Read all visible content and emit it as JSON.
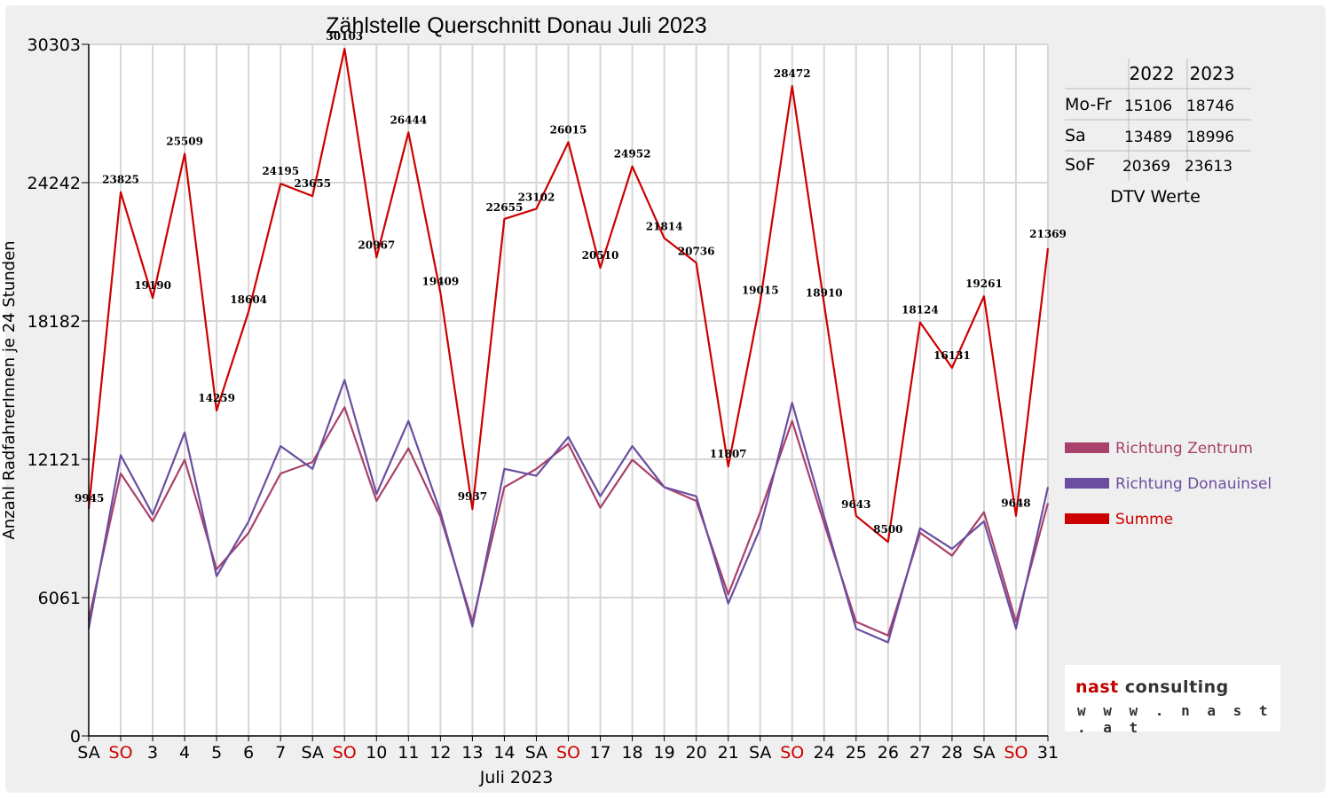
{
  "chart_data": {
    "type": "line",
    "title": "Zählstelle Querschnitt Donau Juli 2023",
    "xlabel": "Juli 2023",
    "ylabel": "Anzahl RadfahrerInnen je 24 Stunden",
    "ylim": [
      0,
      30303
    ],
    "yticks": [
      "0",
      "6061",
      "12121",
      "18182",
      "24242",
      "30303"
    ],
    "ytick_values": [
      0,
      6061,
      12121,
      18182,
      24242,
      30303
    ],
    "categories": [
      "SA",
      "SO",
      "3",
      "4",
      "5",
      "6",
      "7",
      "SA",
      "SO",
      "10",
      "11",
      "12",
      "13",
      "14",
      "SA",
      "SO",
      "17",
      "18",
      "19",
      "20",
      "21",
      "SA",
      "SO",
      "24",
      "25",
      "26",
      "27",
      "28",
      "SA",
      "SO",
      "31"
    ],
    "weekend_flags": [
      0,
      1,
      0,
      0,
      0,
      0,
      0,
      0,
      1,
      0,
      0,
      0,
      0,
      0,
      0,
      1,
      0,
      0,
      0,
      0,
      0,
      0,
      1,
      0,
      0,
      0,
      0,
      0,
      0,
      1,
      0
    ],
    "grid": true,
    "legend_position": "right",
    "series": [
      {
        "name": "Richtung Zentrum",
        "color": "#a8416b",
        "values": [
          5100,
          11500,
          9400,
          12100,
          7300,
          8900,
          11500,
          12000,
          14400,
          10300,
          12600,
          9600,
          5000,
          10900,
          11700,
          12800,
          10000,
          12100,
          10900,
          10300,
          6200,
          9800,
          13800,
          9300,
          5000,
          4400,
          8900,
          7900,
          9800,
          5000,
          10200
        ]
      },
      {
        "name": "Richtung Donauinsel",
        "color": "#6b4ea0",
        "values": [
          4700,
          12300,
          9700,
          13300,
          7000,
          9400,
          12700,
          11700,
          15600,
          10600,
          13800,
          9800,
          4800,
          11700,
          11400,
          13100,
          10500,
          12700,
          10900,
          10500,
          5800,
          9100,
          14600,
          9600,
          4700,
          4100,
          9100,
          8200,
          9400,
          4700,
          10900
        ]
      },
      {
        "name": "Summe",
        "color": "#cc0000",
        "values": [
          9945,
          23825,
          19190,
          25509,
          14259,
          18604,
          24195,
          23655,
          30103,
          20967,
          26444,
          19409,
          9937,
          22655,
          23102,
          26015,
          20510,
          24952,
          21814,
          20736,
          11807,
          19015,
          28472,
          18910,
          9643,
          8500,
          18124,
          16131,
          19261,
          9648,
          21369
        ]
      }
    ],
    "data_labels": [
      "9945",
      "23825",
      "19190",
      "25509",
      "14259",
      "18604",
      "24195",
      "23655",
      "30103",
      "20967",
      "26444",
      "19409",
      "9937",
      "22655",
      "23102",
      "26015",
      "20510",
      "24952",
      "21814",
      "20736",
      "11807",
      "19015",
      "28472",
      "18910",
      "9643",
      "8500",
      "18124",
      "16131",
      "19261",
      "9648",
      "21369"
    ]
  },
  "dtv_table": {
    "headers": [
      "",
      "2022",
      "2023"
    ],
    "rows": [
      {
        "label": "Mo-Fr",
        "v2022": "15106",
        "v2023": "18746"
      },
      {
        "label": "Sa",
        "v2022": "13489",
        "v2023": "18996"
      },
      {
        "label": "SoF",
        "v2022": "20369",
        "v2023": "23613"
      }
    ],
    "caption": "DTV Werte"
  },
  "logo": {
    "word1": "nast",
    "word2": "consulting",
    "url": "w w w . n a s t . a t"
  }
}
